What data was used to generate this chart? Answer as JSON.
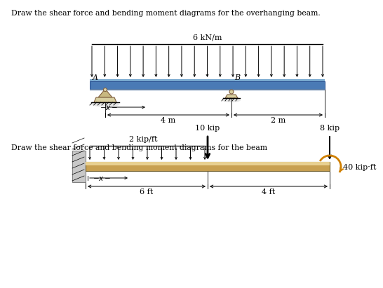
{
  "title1": "Draw the shear force and bending moment diagrams for the overhanging beam.",
  "title2": "Draw the shear force and bending moment diagrams for the beam",
  "bg_color": "#ffffff",
  "text_color": "#000000",
  "beam1": {
    "load_label": "6 kN/m",
    "beam_color": "#4a7ab5",
    "beam_edge": "#2a5090",
    "beam_shine": "#7aaad0",
    "beam_shadow": "#6080a8",
    "support_fill": "#c8b880",
    "support_edge": "#806040",
    "dim1": "4 m",
    "dim2": "2 m",
    "label_A": "A",
    "label_B": "B"
  },
  "beam2": {
    "load_label1": "2 kip/ft",
    "load_label2": "10 kip",
    "load_label3": "8 kip",
    "moment_label": "40 kip·ft",
    "beam_color": "#c8a050",
    "beam_highlight": "#e8d090",
    "wall_color": "#c8c8c8",
    "wall_edge": "#808080",
    "moment_color": "#d08000",
    "dim1": "6 ft",
    "dim2": "4 ft"
  }
}
